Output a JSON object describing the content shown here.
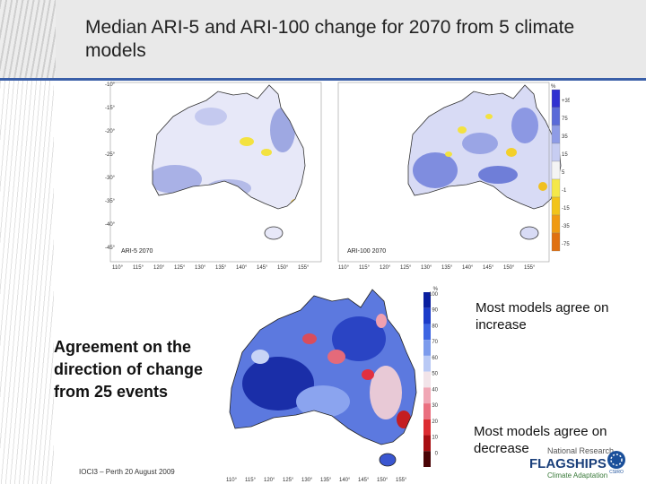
{
  "slide": {
    "title": "Median ARI-5 and ARI-100 change for 2070 from 5 climate models",
    "footer": "IOCI3 – Perth 20 August 2009"
  },
  "top_maps": {
    "left_label": "ARI-5 2070",
    "right_label": "ARI-100 2070",
    "lat_ticks": [
      "-10°",
      "-15°",
      "-20°",
      "-25°",
      "-30°",
      "-35°",
      "-40°",
      "-45°"
    ],
    "lon_ticks": [
      "110°",
      "115°",
      "120°",
      "125°",
      "130°",
      "135°",
      "140°",
      "145°",
      "150°",
      "155°"
    ],
    "legend_unit": "%",
    "legend_labels": [
      "+35",
      "75",
      "35",
      "15",
      "5",
      "-1",
      "-15",
      "-35",
      "-75"
    ],
    "legend_colors": [
      "#3030d0",
      "#5a6ad8",
      "#8e9be6",
      "#c7cdf2",
      "#f4f4f4",
      "#f4e84a",
      "#f2c419",
      "#f09a12",
      "#e07010"
    ]
  },
  "bottom_map": {
    "legend_unit": "%",
    "legend_labels": [
      "100",
      "90",
      "80",
      "70",
      "60",
      "50",
      "40",
      "30",
      "20",
      "10",
      "0"
    ],
    "legend_colors": [
      "#0a1fa0",
      "#1c3cc9",
      "#3d65e2",
      "#7c9bec",
      "#b9c9f5",
      "#f2e4e9",
      "#f0a7b5",
      "#ea6f7f",
      "#dc2c31",
      "#a80e12",
      "#4a0406"
    ],
    "lon_ticks": [
      "110°",
      "115°",
      "120°",
      "125°",
      "130°",
      "135°",
      "140°",
      "145°",
      "150°",
      "155°"
    ]
  },
  "annotations": {
    "agreement": "Agreement on the direction of change from 25 events",
    "increase": "Most models agree on increase",
    "decrease": "Most models agree on decrease"
  },
  "logo": {
    "line1": "National Research",
    "line2": "FLAGSHIPS",
    "line3": "Climate Adaptation",
    "mark": "CSIRO"
  }
}
